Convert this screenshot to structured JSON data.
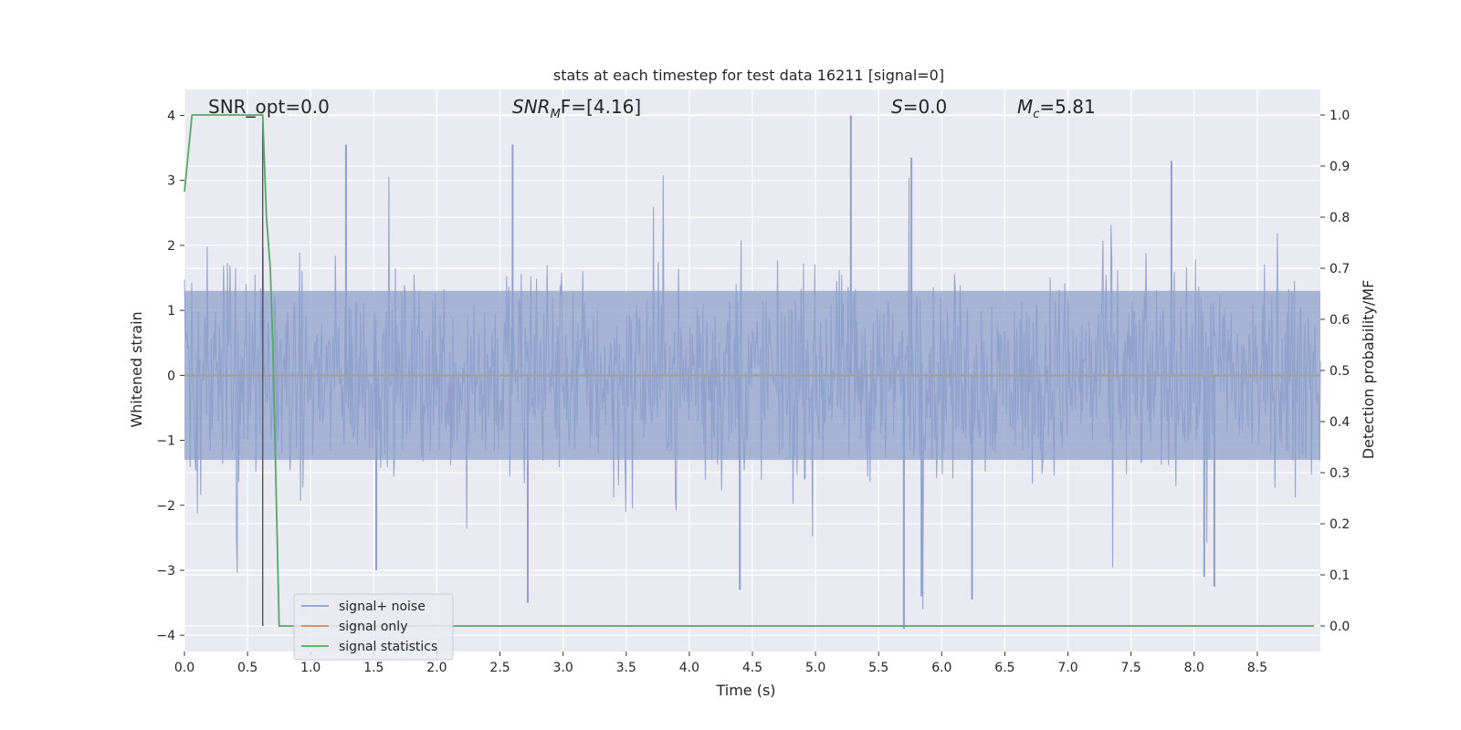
{
  "chart_data": {
    "type": "line",
    "title": "stats at each timestep for test data 16211 [signal=0]",
    "xlabel": "Time (s)",
    "ylabel_left": "Whitened strain",
    "ylabel_right": "Detection probability/MF",
    "xlim": [
      0.0,
      9.0
    ],
    "ylim_left": [
      -4.25,
      4.4
    ],
    "ylim_right": [
      -0.05,
      1.05
    ],
    "x_ticks": [
      "0.0",
      "0.5",
      "1.0",
      "1.5",
      "2.0",
      "2.5",
      "3.0",
      "3.5",
      "4.0",
      "4.5",
      "5.0",
      "5.5",
      "6.0",
      "6.5",
      "7.0",
      "7.5",
      "8.0",
      "8.5"
    ],
    "x_tick_values": [
      0,
      0.5,
      1,
      1.5,
      2,
      2.5,
      3,
      3.5,
      4,
      4.5,
      5,
      5.5,
      6,
      6.5,
      7,
      7.5,
      8,
      8.5
    ],
    "left_ticks": [
      "4",
      "3",
      "2",
      "1",
      "0",
      "−1",
      "−2",
      "−3",
      "−4"
    ],
    "left_tick_values": [
      4,
      3,
      2,
      1,
      0,
      -1,
      -2,
      -3,
      -4
    ],
    "right_ticks": [
      "1.0",
      "0.9",
      "0.8",
      "0.7",
      "0.6",
      "0.5",
      "0.4",
      "0.3",
      "0.2",
      "0.1",
      "0.0"
    ],
    "right_tick_values": [
      1.0,
      0.9,
      0.8,
      0.7,
      0.6,
      0.5,
      0.4,
      0.3,
      0.2,
      0.1,
      0.0
    ],
    "grid": true,
    "legend_position": "lower-left",
    "annotations": {
      "snr_opt": "SNR_opt=0.0",
      "snr_mf_base": "SNR",
      "snr_mf_sub": "M",
      "snr_mf_rest": "F=[4.16]",
      "s_base": "S",
      "s_rest": "=0.0",
      "mc_base": "M",
      "mc_sub": "c",
      "mc_rest": "=5.81"
    },
    "marker_x": 0.62,
    "series": [
      {
        "name": "signal+ noise",
        "axis": "left",
        "color": "#8da0cb",
        "description_level": "whitened strain noise, approx ±1.5 dense with spikes up to ±4",
        "spikes": [
          {
            "x": 5.28,
            "y": 4.0
          },
          {
            "x": 5.7,
            "y": -3.9
          },
          {
            "x": 1.28,
            "y": 3.55
          },
          {
            "x": 2.6,
            "y": 3.55
          },
          {
            "x": 5.76,
            "y": 3.35
          },
          {
            "x": 7.82,
            "y": 3.3
          },
          {
            "x": 2.72,
            "y": -3.5
          },
          {
            "x": 5.84,
            "y": -3.4
          },
          {
            "x": 6.24,
            "y": -3.45
          },
          {
            "x": 4.4,
            "y": -3.3
          },
          {
            "x": 8.16,
            "y": -3.25
          },
          {
            "x": 1.52,
            "y": -3.0
          },
          {
            "x": 8.08,
            "y": -3.1
          }
        ]
      },
      {
        "name": "signal only",
        "axis": "left",
        "color": "#dd8452",
        "value": 0.0
      },
      {
        "name": "signal statistics",
        "axis": "right",
        "color": "#55a868",
        "x": [
          0.0,
          0.06,
          0.1,
          0.15,
          0.62,
          0.65,
          0.68,
          0.7,
          0.75,
          0.8,
          8.95
        ],
        "y": [
          0.85,
          1.0,
          1.0,
          1.0,
          1.0,
          0.8,
          0.7,
          0.55,
          0.0,
          0.0,
          0.0
        ]
      }
    ],
    "colors": {
      "plot_bg": "#eaeaf2",
      "grid": "#ffffff",
      "marker_line": "#555555"
    }
  }
}
